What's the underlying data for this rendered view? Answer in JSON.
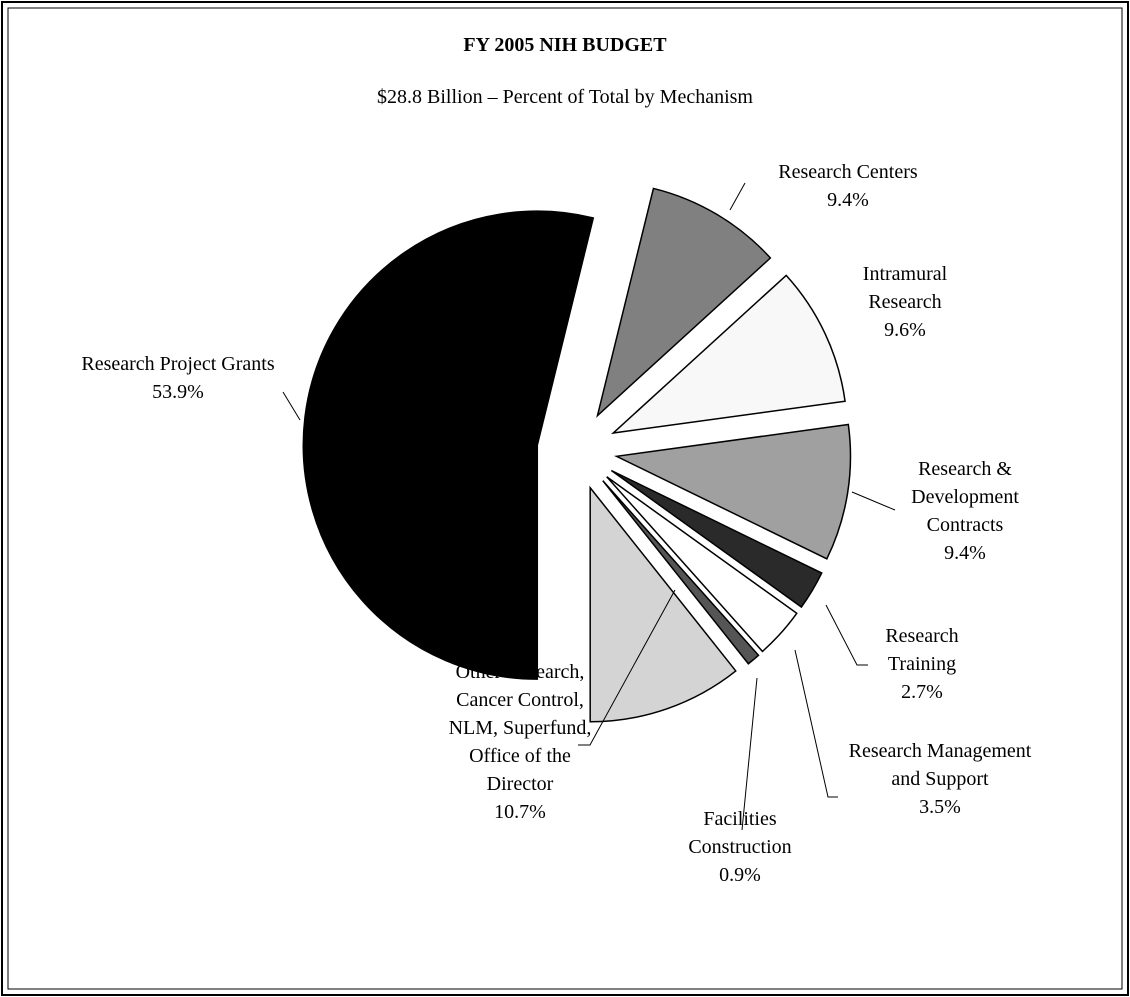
{
  "chart_data": {
    "type": "pie",
    "title": "FY 2005 NIH BUDGET",
    "subtitle": "$28.8 Billion – Percent of Total by Mechanism",
    "categories": [
      "Research Project Grants",
      "Research Centers",
      "Intramural Research",
      "Research & Development Contracts",
      "Research Training",
      "Research Management and Support",
      "Facilities Construction",
      "Other Research, Cancer Control, NLM, Superfund, Office of the Director"
    ],
    "values": [
      53.9,
      9.4,
      9.6,
      9.4,
      2.7,
      3.5,
      0.9,
      10.7
    ],
    "value_labels": [
      "53.9%",
      "9.4%",
      "9.6%",
      "9.4%",
      "2.7%",
      "3.5%",
      "0.9%",
      "10.7%"
    ],
    "colors": [
      "#000000",
      "#808080",
      "#f8f8f8",
      "#a0a0a0",
      "#2a2a2a",
      "#ffffff",
      "#555555",
      "#d4d4d4"
    ],
    "exploded": true
  }
}
